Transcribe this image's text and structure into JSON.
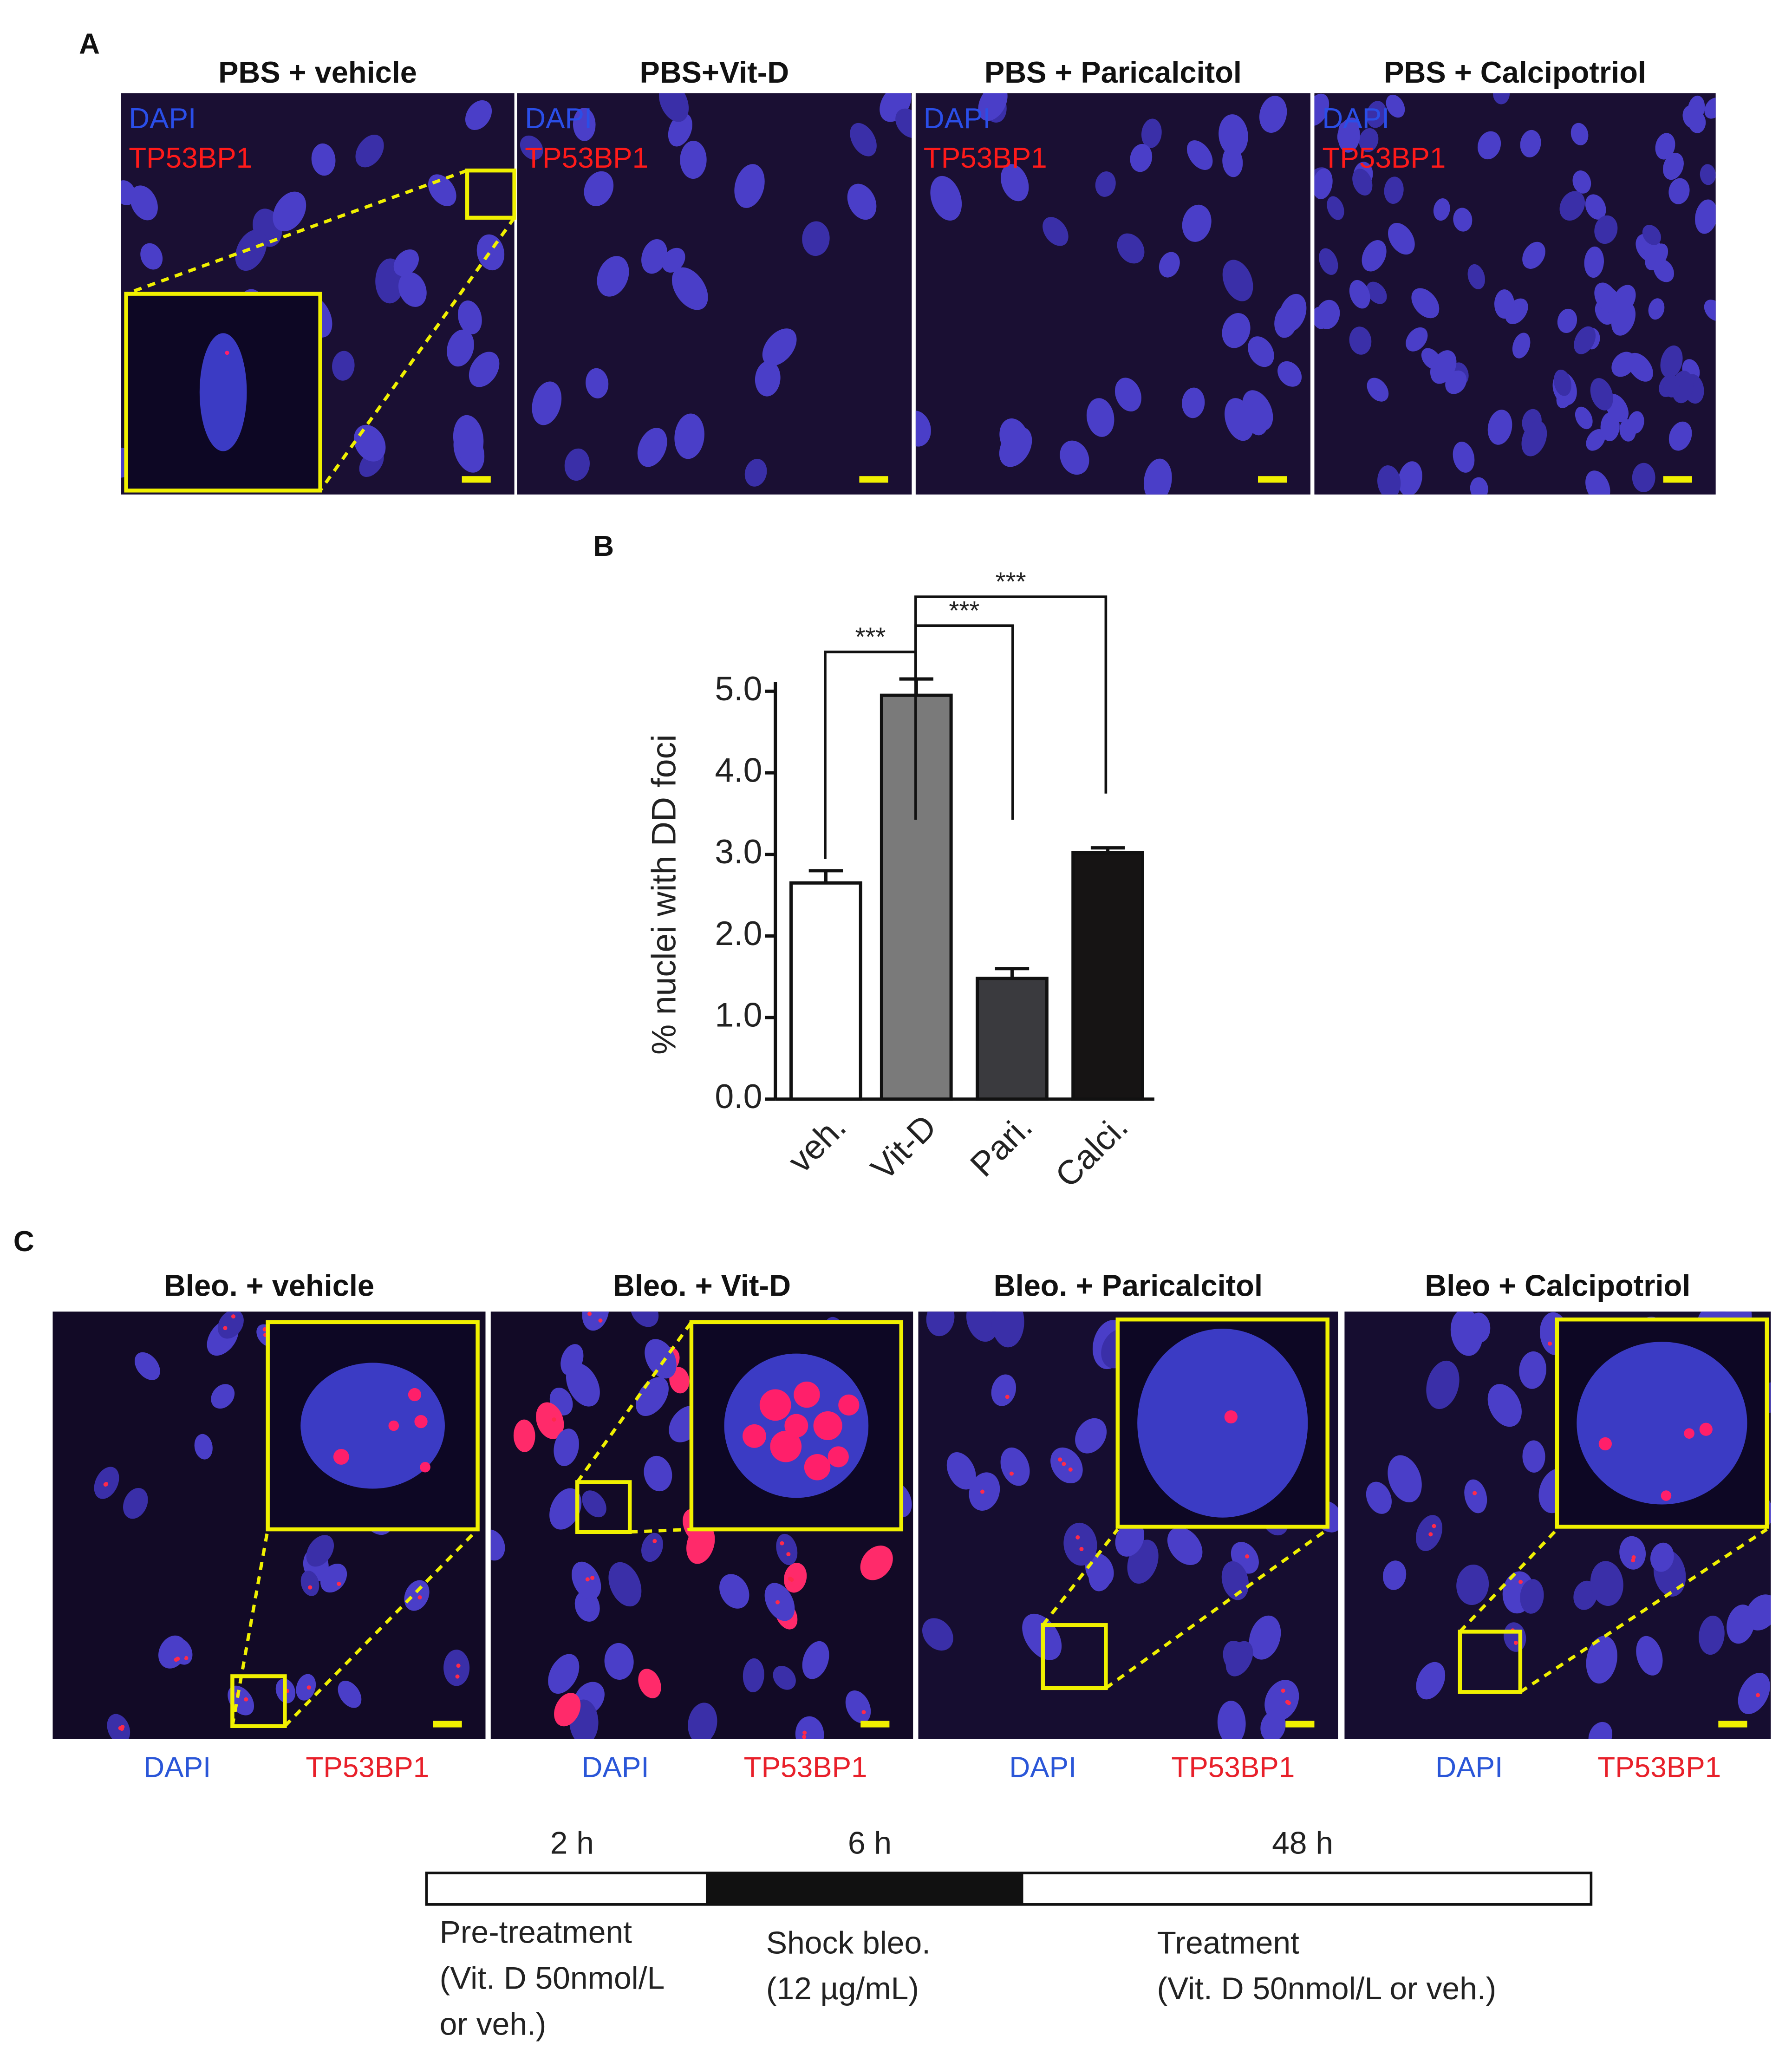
{
  "panel_a": {
    "label": "A",
    "images": [
      {
        "title": "PBS + vehicle",
        "channels": [
          "DAPI",
          "TP53BP1"
        ]
      },
      {
        "title": "PBS+Vit-D",
        "channels": [
          "DAPI",
          "TP53BP1"
        ]
      },
      {
        "title": "PBS + Paricalcitol",
        "channels": [
          "DAPI",
          "TP53BP1"
        ]
      },
      {
        "title": "PBS + Calcipotriol",
        "channels": [
          "DAPI",
          "TP53BP1"
        ]
      }
    ]
  },
  "chart_data": {
    "type": "bar",
    "panel_label": "B",
    "y_label": "% nuclei with DD foci",
    "categories": [
      "veh.",
      "Vit-D",
      "Pari.",
      "Calci."
    ],
    "values": [
      2.65,
      4.95,
      1.48,
      3.02
    ],
    "errors": [
      0.15,
      0.2,
      0.12,
      0.06
    ],
    "colors": [
      "#ffffff",
      "#7a7a7a",
      "#3a3a3e",
      "#161414"
    ],
    "ylim": [
      0,
      5.0
    ],
    "yticks": [
      {
        "value": 0,
        "label": "0.0"
      },
      {
        "value": 1,
        "label": "1.0"
      },
      {
        "value": 2,
        "label": "2.0"
      },
      {
        "value": 3,
        "label": "3.0"
      },
      {
        "value": 4,
        "label": "4.0"
      },
      {
        "value": 5,
        "label": "5.0"
      }
    ],
    "significance_labels": [
      "***",
      "***",
      "***"
    ]
  },
  "panel_c": {
    "label": "C",
    "images": [
      {
        "title": "Bleo. + vehicle",
        "channels": [
          "DAPI",
          "TP53BP1"
        ]
      },
      {
        "title": "Bleo. + Vit-D",
        "channels": [
          "DAPI",
          "TP53BP1"
        ]
      },
      {
        "title": "Bleo. + Paricalcitol",
        "channels": [
          "DAPI",
          "TP53BP1"
        ]
      },
      {
        "title": "Bleo + Calcipotriol",
        "channels": [
          "DAPI",
          "TP53BP1"
        ]
      }
    ]
  },
  "timeline": {
    "durations": [
      "2 h",
      "6 h",
      "48 h"
    ],
    "phases": [
      {
        "name": "Pre-treatment",
        "detail": [
          "(Vit. D 50nmol/L",
          "or veh.)"
        ]
      },
      {
        "name": "Shock bleo.",
        "detail": [
          "(12 µg/mL)"
        ]
      },
      {
        "name": "Treatment",
        "detail": [
          "(Vit. D  50nmol/L or veh.)"
        ]
      }
    ]
  }
}
